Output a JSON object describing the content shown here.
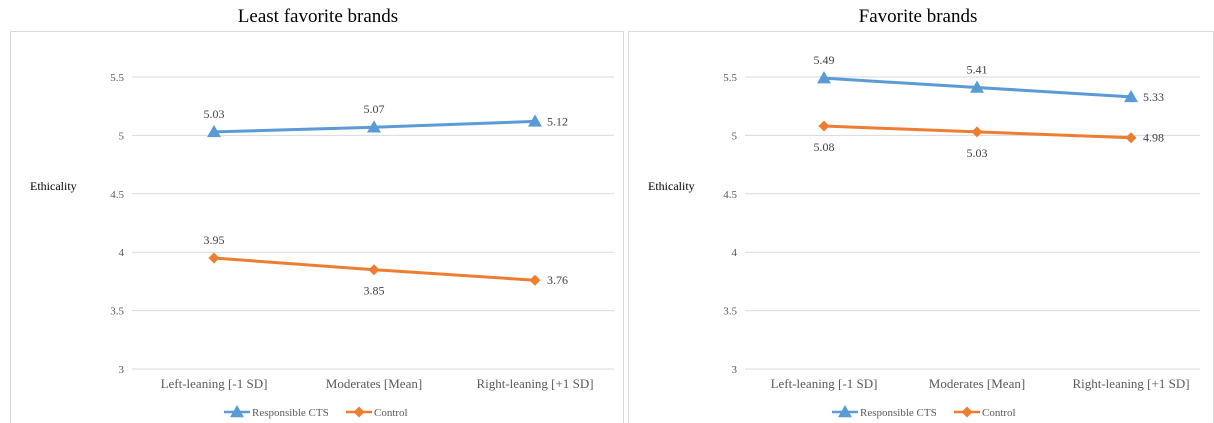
{
  "chart_data": [
    {
      "type": "line",
      "title": "Least favorite brands",
      "xlabel": "",
      "ylabel": "Ethicality",
      "categories": [
        "Left-leaning [-1 SD]",
        "Moderates [Mean]",
        "Right-leaning [+1 SD]"
      ],
      "ylim": [
        3,
        5.5
      ],
      "yticks": [
        "3",
        "3.5",
        "4",
        "4.5",
        "5",
        "5.5"
      ],
      "grid": true,
      "legend": "bottom",
      "series": [
        {
          "name": "Responsible CTS",
          "values": [
            5.03,
            5.07,
            5.12
          ],
          "labels": [
            "5.03",
            "5.07",
            "5.12"
          ],
          "label_positions": [
            "above",
            "above",
            "right"
          ],
          "color": "#5B9BD5",
          "marker": "triangle"
        },
        {
          "name": "Control",
          "values": [
            3.95,
            3.85,
            3.76
          ],
          "labels": [
            "3.95",
            "3.85",
            "3.76"
          ],
          "label_positions": [
            "above",
            "below",
            "right"
          ],
          "color": "#ED7D31",
          "marker": "diamond"
        }
      ]
    },
    {
      "type": "line",
      "title": "Favorite brands",
      "xlabel": "",
      "ylabel": "Ethicality",
      "categories": [
        "Left-leaning [-1 SD]",
        "Moderates [Mean]",
        "Right-leaning [+1 SD]"
      ],
      "ylim": [
        3,
        5.5
      ],
      "yticks": [
        "3",
        "3.5",
        "4",
        "4.5",
        "5",
        "5.5"
      ],
      "grid": true,
      "legend": "bottom",
      "series": [
        {
          "name": "Responsible CTS",
          "values": [
            5.49,
            5.41,
            5.33
          ],
          "labels": [
            "5.49",
            "5.41",
            "5.33"
          ],
          "label_positions": [
            "above",
            "above",
            "right"
          ],
          "color": "#5B9BD5",
          "marker": "triangle"
        },
        {
          "name": "Control",
          "values": [
            5.08,
            5.03,
            4.98
          ],
          "labels": [
            "5.08",
            "5.03",
            "4.98"
          ],
          "label_positions": [
            "below",
            "below",
            "right"
          ],
          "color": "#ED7D31",
          "marker": "diamond"
        }
      ]
    }
  ]
}
